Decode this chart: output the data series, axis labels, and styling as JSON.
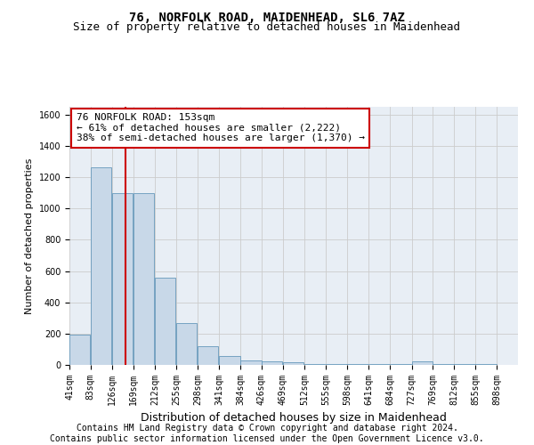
{
  "title": "76, NORFOLK ROAD, MAIDENHEAD, SL6 7AZ",
  "subtitle": "Size of property relative to detached houses in Maidenhead",
  "xlabel": "Distribution of detached houses by size in Maidenhead",
  "ylabel": "Number of detached properties",
  "footer_line1": "Contains HM Land Registry data © Crown copyright and database right 2024.",
  "footer_line2": "Contains public sector information licensed under the Open Government Licence v3.0.",
  "annotation_line1": "76 NORFOLK ROAD: 153sqm",
  "annotation_line2": "← 61% of detached houses are smaller (2,222)",
  "annotation_line3": "38% of semi-detached houses are larger (1,370) →",
  "property_size": 153,
  "bins": [
    41,
    83,
    126,
    169,
    212,
    255,
    298,
    341,
    384,
    426,
    469,
    512,
    555,
    598,
    641,
    684,
    727,
    769,
    812,
    855,
    898
  ],
  "bin_labels": [
    "41sqm",
    "83sqm",
    "126sqm",
    "169sqm",
    "212sqm",
    "255sqm",
    "298sqm",
    "341sqm",
    "384sqm",
    "426sqm",
    "469sqm",
    "512sqm",
    "555sqm",
    "598sqm",
    "641sqm",
    "684sqm",
    "727sqm",
    "769sqm",
    "812sqm",
    "855sqm",
    "898sqm"
  ],
  "bar_values": [
    195,
    1265,
    1100,
    1100,
    555,
    265,
    120,
    55,
    30,
    20,
    15,
    5,
    5,
    5,
    5,
    5,
    20,
    5,
    5,
    5,
    0
  ],
  "bar_color": "#c8d8e8",
  "bar_edge_color": "#6699bb",
  "vline_color": "#cc0000",
  "ylim": [
    0,
    1650
  ],
  "yticks": [
    0,
    200,
    400,
    600,
    800,
    1000,
    1200,
    1400,
    1600
  ],
  "annotation_box_facecolor": "#ffffff",
  "annotation_box_edgecolor": "#cc0000",
  "grid_color": "#cccccc",
  "plot_bg_color": "#e8eef5",
  "fig_bg_color": "#ffffff",
  "title_fontsize": 10,
  "subtitle_fontsize": 9,
  "xlabel_fontsize": 9,
  "ylabel_fontsize": 8,
  "tick_fontsize": 7,
  "annotation_fontsize": 8,
  "footer_fontsize": 7
}
